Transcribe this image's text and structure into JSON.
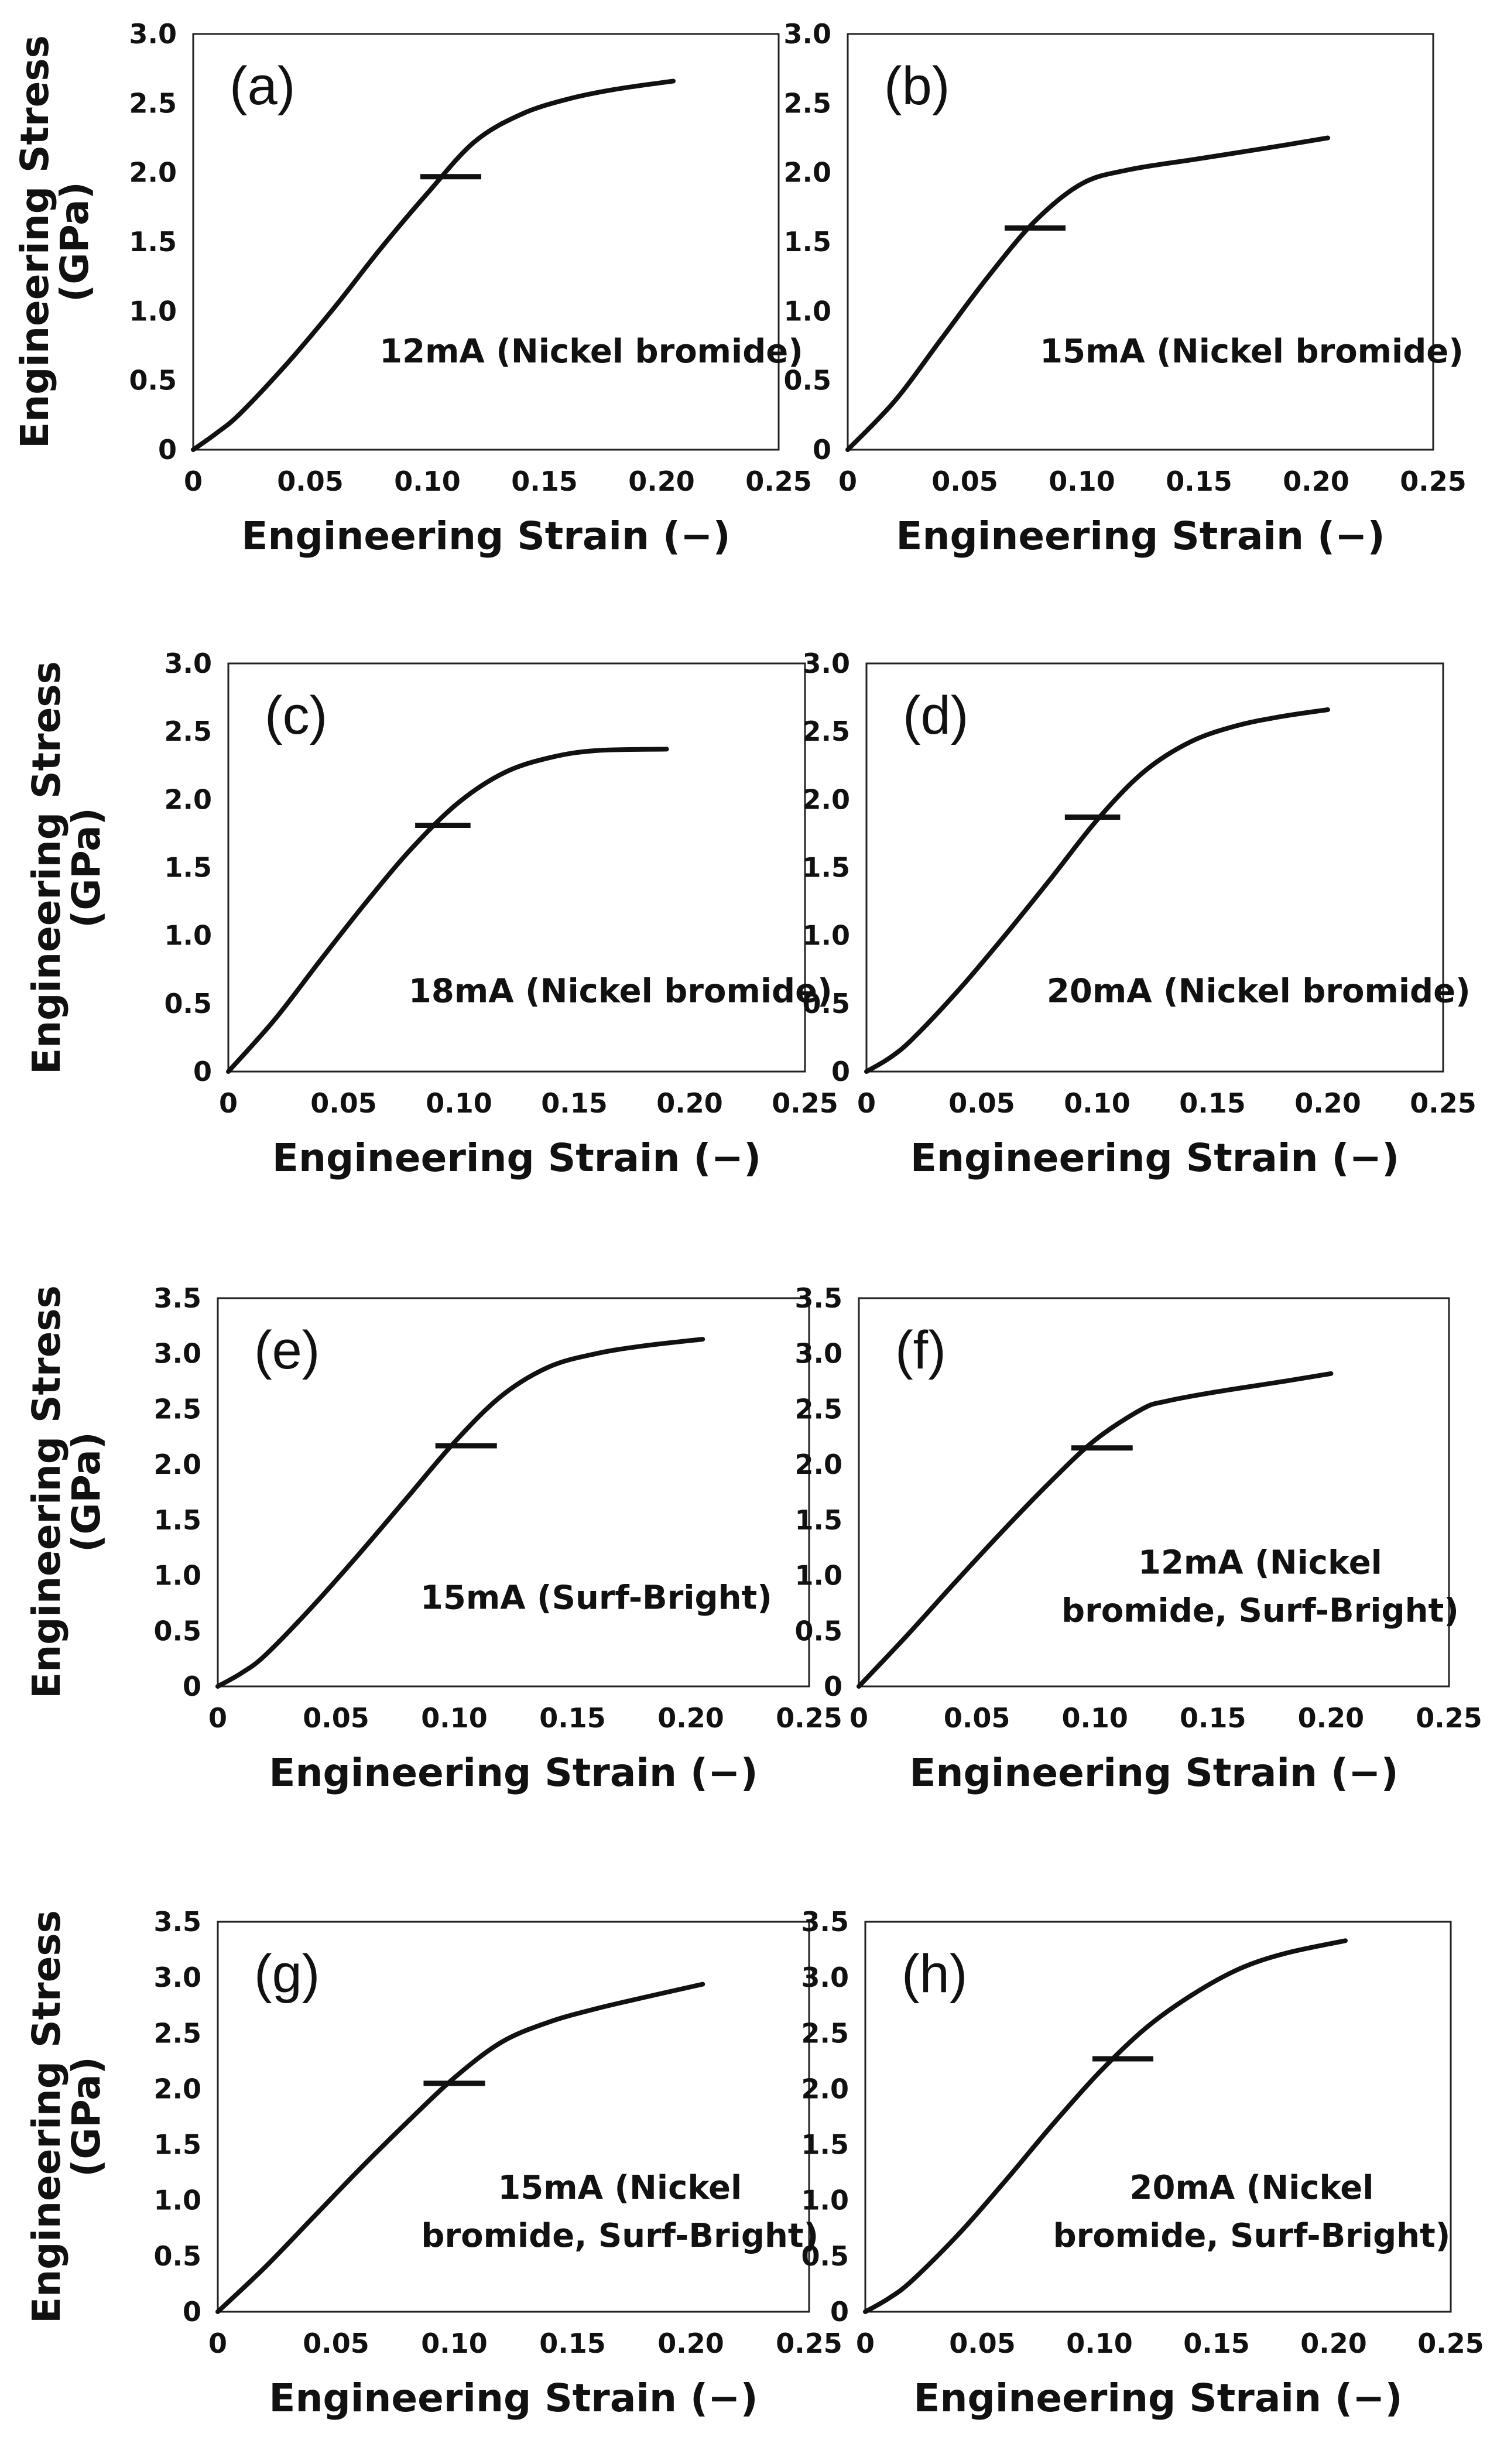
{
  "figure": {
    "xlabel": "Engineering Strain (−)",
    "ylabel_line1": "Engineering Stress",
    "ylabel_line2": "(GPa)"
  },
  "chart_data": [
    {
      "type": "line",
      "panel": "(a)",
      "label_lines": [
        "12mA (Nickel bromide)"
      ],
      "xlim": [
        0,
        0.25
      ],
      "ylim": [
        0,
        3.0
      ],
      "xticks": [
        "0",
        "0.05",
        "0.10",
        "0.15",
        "0.20",
        "0.25"
      ],
      "yticks": [
        "0",
        "0.5",
        "1.0",
        "1.5",
        "2.0",
        "2.5",
        "3.0"
      ],
      "xlabel": "Engineering Strain (−)",
      "ylabel": "Engineering Stress (GPa)",
      "series": [
        {
          "name": "12mA (Nickel bromide)",
          "x": [
            0,
            0.01,
            0.02,
            0.04,
            0.06,
            0.08,
            0.1,
            0.12,
            0.14,
            0.16,
            0.18,
            0.205
          ],
          "y": [
            0,
            0.12,
            0.26,
            0.62,
            1.02,
            1.45,
            1.85,
            2.22,
            2.42,
            2.53,
            2.6,
            2.66
          ]
        }
      ],
      "yield_marker": {
        "x": 0.11,
        "y": 1.97,
        "halfwidth": 0.013
      }
    },
    {
      "type": "line",
      "panel": "(b)",
      "label_lines": [
        "15mA (Nickel bromide)"
      ],
      "xlim": [
        0,
        0.25
      ],
      "ylim": [
        0,
        3.0
      ],
      "xticks": [
        "0",
        "0.05",
        "0.10",
        "0.15",
        "0.20",
        "0.25"
      ],
      "yticks": [
        "0",
        "0.5",
        "1.0",
        "1.5",
        "2.0",
        "2.5",
        "3.0"
      ],
      "xlabel": "Engineering Strain (−)",
      "ylabel": "Engineering Stress (GPa)",
      "series": [
        {
          "name": "15mA (Nickel bromide)",
          "x": [
            0,
            0.02,
            0.04,
            0.06,
            0.08,
            0.1,
            0.12,
            0.15,
            0.18,
            0.205
          ],
          "y": [
            0,
            0.35,
            0.8,
            1.25,
            1.65,
            1.92,
            2.02,
            2.1,
            2.18,
            2.25
          ]
        }
      ],
      "yield_marker": {
        "x": 0.08,
        "y": 1.6,
        "halfwidth": 0.013
      }
    },
    {
      "type": "line",
      "panel": "(c)",
      "label_lines": [
        "18mA (Nickel bromide)"
      ],
      "xlim": [
        0,
        0.25
      ],
      "ylim": [
        0,
        3.0
      ],
      "xticks": [
        "0",
        "0.05",
        "0.10",
        "0.15",
        "0.20",
        "0.25"
      ],
      "yticks": [
        "0",
        "0.5",
        "1.0",
        "1.5",
        "2.0",
        "2.5",
        "3.0"
      ],
      "xlabel": "Engineering Strain (−)",
      "ylabel": "Engineering Stress (GPa)",
      "series": [
        {
          "name": "18mA (Nickel bromide)",
          "x": [
            0,
            0.02,
            0.04,
            0.06,
            0.08,
            0.1,
            0.12,
            0.14,
            0.16,
            0.19
          ],
          "y": [
            0,
            0.38,
            0.82,
            1.25,
            1.65,
            1.98,
            2.2,
            2.31,
            2.36,
            2.37
          ]
        }
      ],
      "yield_marker": {
        "x": 0.093,
        "y": 1.81,
        "halfwidth": 0.012
      }
    },
    {
      "type": "line",
      "panel": "(d)",
      "label_lines": [
        "20mA (Nickel bromide)"
      ],
      "xlim": [
        0,
        0.25
      ],
      "ylim": [
        0,
        3.0
      ],
      "xticks": [
        "0",
        "0.05",
        "0.10",
        "0.15",
        "0.20",
        "0.25"
      ],
      "yticks": [
        "0",
        "0.5",
        "1.0",
        "1.5",
        "2.0",
        "2.5",
        "3.0"
      ],
      "xlabel": "Engineering Strain (−)",
      "ylabel": "Engineering Stress (GPa)",
      "series": [
        {
          "name": "20mA (Nickel bromide)",
          "x": [
            0,
            0.01,
            0.02,
            0.04,
            0.06,
            0.08,
            0.1,
            0.12,
            0.14,
            0.16,
            0.18,
            0.2
          ],
          "y": [
            0,
            0.1,
            0.24,
            0.6,
            1.0,
            1.42,
            1.85,
            2.2,
            2.42,
            2.54,
            2.61,
            2.66
          ]
        }
      ],
      "yield_marker": {
        "x": 0.098,
        "y": 1.87,
        "halfwidth": 0.012
      }
    },
    {
      "type": "line",
      "panel": "(e)",
      "label_lines": [
        "15mA (Surf-Bright)"
      ],
      "xlim": [
        0,
        0.25
      ],
      "ylim": [
        0,
        3.5
      ],
      "xticks": [
        "0",
        "0.05",
        "0.10",
        "0.15",
        "0.20",
        "0.25"
      ],
      "yticks": [
        "0",
        "0.5",
        "1.0",
        "1.5",
        "2.0",
        "2.5",
        "3.0",
        "3.5"
      ],
      "xlabel": "Engineering Strain (−)",
      "ylabel": "Engineering Stress (GPa)",
      "series": [
        {
          "name": "15mA (Surf-Bright)",
          "x": [
            0,
            0.01,
            0.02,
            0.04,
            0.06,
            0.08,
            0.1,
            0.12,
            0.14,
            0.16,
            0.18,
            0.205
          ],
          "y": [
            0,
            0.12,
            0.28,
            0.72,
            1.2,
            1.7,
            2.2,
            2.62,
            2.88,
            3.0,
            3.07,
            3.13
          ]
        }
      ],
      "yield_marker": {
        "x": 0.105,
        "y": 2.17,
        "halfwidth": 0.013
      }
    },
    {
      "type": "line",
      "panel": "(f)",
      "label_lines": [
        "12mA (Nickel",
        "bromide, Surf-Bright)"
      ],
      "xlim": [
        0,
        0.25
      ],
      "ylim": [
        0,
        3.5
      ],
      "xticks": [
        "0",
        "0.05",
        "0.10",
        "0.15",
        "0.20",
        "0.25"
      ],
      "yticks": [
        "0",
        "0.5",
        "1.0",
        "1.5",
        "2.0",
        "2.5",
        "3.0",
        "3.5"
      ],
      "xlabel": "Engineering Strain (−)",
      "ylabel": "Engineering Stress (GPa)",
      "series": [
        {
          "name": "12mA (Nickel bromide, Surf-Bright)",
          "x": [
            0,
            0.02,
            0.04,
            0.06,
            0.08,
            0.1,
            0.12,
            0.13,
            0.15,
            0.18,
            0.2
          ],
          "y": [
            0,
            0.45,
            0.92,
            1.38,
            1.82,
            2.22,
            2.5,
            2.57,
            2.65,
            2.75,
            2.82
          ]
        }
      ],
      "yield_marker": {
        "x": 0.103,
        "y": 2.15,
        "halfwidth": 0.013
      }
    },
    {
      "type": "line",
      "panel": "(g)",
      "label_lines": [
        "15mA (Nickel",
        "bromide, Surf-Bright)"
      ],
      "xlim": [
        0,
        0.25
      ],
      "ylim": [
        0,
        3.5
      ],
      "xticks": [
        "0",
        "0.05",
        "0.10",
        "0.15",
        "0.20",
        "0.25"
      ],
      "yticks": [
        "0",
        "0.5",
        "1.0",
        "1.5",
        "2.0",
        "2.5",
        "3.0",
        "3.5"
      ],
      "xlabel": "Engineering Strain (−)",
      "ylabel": "Engineering Stress (GPa)",
      "series": [
        {
          "name": "15mA (Nickel bromide, Surf-Bright)",
          "x": [
            0,
            0.02,
            0.04,
            0.06,
            0.08,
            0.1,
            0.12,
            0.14,
            0.16,
            0.18,
            0.205
          ],
          "y": [
            0,
            0.4,
            0.84,
            1.28,
            1.7,
            2.1,
            2.42,
            2.6,
            2.72,
            2.82,
            2.94
          ]
        }
      ],
      "yield_marker": {
        "x": 0.1,
        "y": 2.05,
        "halfwidth": 0.013
      }
    },
    {
      "type": "line",
      "panel": "(h)",
      "label_lines": [
        "20mA (Nickel",
        "bromide, Surf-Bright)"
      ],
      "xlim": [
        0,
        0.25
      ],
      "ylim": [
        0,
        3.5
      ],
      "xticks": [
        "0",
        "0.05",
        "0.10",
        "0.15",
        "0.20",
        "0.25"
      ],
      "yticks": [
        "0",
        "0.5",
        "1.0",
        "1.5",
        "2.0",
        "2.5",
        "3.0",
        "3.5"
      ],
      "xlabel": "Engineering Strain (−)",
      "ylabel": "Engineering Stress (GPa)",
      "series": [
        {
          "name": "20mA (Nickel bromide, Surf-Bright)",
          "x": [
            0,
            0.01,
            0.02,
            0.04,
            0.06,
            0.08,
            0.1,
            0.12,
            0.14,
            0.16,
            0.18,
            0.205
          ],
          "y": [
            0,
            0.12,
            0.28,
            0.7,
            1.18,
            1.68,
            2.15,
            2.55,
            2.85,
            3.08,
            3.22,
            3.33
          ]
        }
      ],
      "yield_marker": {
        "x": 0.11,
        "y": 2.27,
        "halfwidth": 0.013
      }
    }
  ]
}
